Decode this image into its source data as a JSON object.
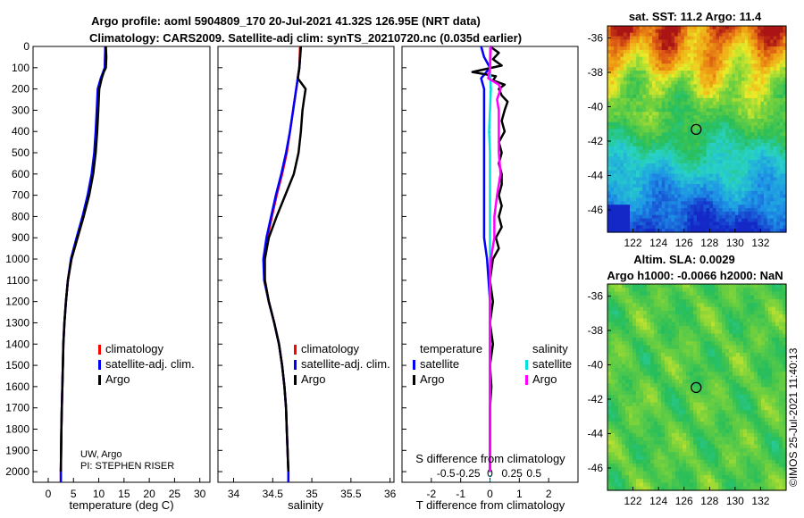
{
  "header": {
    "title_line1": "Argo profile: aoml 5904809_170 20-Jul-2021 41.32S 126.95E (NRT data)",
    "title_line2": "Climatology: CARS2009. Satellite-adj clim: synTS_20210720.nc (0.035d earlier)"
  },
  "colors": {
    "climatology": "#ff0000",
    "satellite_adj": "#0000ff",
    "argo": "#000000",
    "t_diff_satellite": "#0000ff",
    "s_diff_satellite": "#00e0e0",
    "s_diff_argo": "#ff00ff"
  },
  "chart_data": [
    {
      "type": "line",
      "name": "temperature_profile",
      "xlabel": "temperature (deg C)",
      "ylabel": "",
      "xlim": [
        -3,
        32
      ],
      "ylim": [
        2050,
        0
      ],
      "xticks": [
        "0",
        "5",
        "10",
        "15",
        "20",
        "25",
        "30"
      ],
      "xtick_values": [
        0,
        5,
        10,
        15,
        20,
        25,
        30
      ],
      "yticks": [
        "0",
        "100",
        "200",
        "300",
        "400",
        "500",
        "600",
        "700",
        "800",
        "900",
        "1000",
        "1100",
        "1200",
        "1300",
        "1400",
        "1500",
        "1600",
        "1700",
        "1800",
        "1900",
        "2000"
      ],
      "ytick_values": [
        0,
        100,
        200,
        300,
        400,
        500,
        600,
        700,
        800,
        900,
        1000,
        1100,
        1200,
        1300,
        1400,
        1500,
        1600,
        1700,
        1800,
        1900,
        2000
      ],
      "legend": [
        "climatology",
        "satellite-adj. clim.",
        "Argo"
      ],
      "annotation_1": "UW, Argo",
      "annotation_2": "PI: STEPHEN RISER",
      "series": [
        {
          "name": "climatology",
          "depth": [
            0,
            100,
            150,
            200,
            300,
            400,
            500,
            600,
            700,
            800,
            900,
            1000,
            1100,
            1200,
            1300,
            1400,
            1500,
            1600,
            1700,
            1800,
            1900,
            2000,
            2050
          ],
          "values": [
            11.3,
            11.2,
            10.5,
            10.0,
            9.8,
            9.6,
            9.3,
            8.8,
            8.0,
            7.0,
            5.8,
            4.6,
            3.9,
            3.5,
            3.2,
            3.0,
            2.9,
            2.8,
            2.7,
            2.6,
            2.55,
            2.5,
            2.5
          ]
        },
        {
          "name": "satellite-adj. clim.",
          "depth": [
            0,
            100,
            150,
            200,
            300,
            400,
            500,
            600,
            700,
            800,
            900,
            1000,
            1100,
            1200,
            1300,
            1400,
            1500,
            1600,
            1700,
            1800,
            1900,
            2000,
            2050
          ],
          "values": [
            11.3,
            11.2,
            10.4,
            9.8,
            9.6,
            9.4,
            9.1,
            8.6,
            7.8,
            6.8,
            5.6,
            4.5,
            3.9,
            3.5,
            3.2,
            3.0,
            2.9,
            2.8,
            2.7,
            2.6,
            2.55,
            2.5,
            2.5
          ]
        },
        {
          "name": "Argo",
          "depth": [
            0,
            50,
            100,
            120,
            150,
            200,
            300,
            400,
            500,
            600,
            700,
            800,
            900,
            1000,
            1100,
            1200,
            1300,
            1400,
            1500,
            1600,
            1700,
            1800,
            1900,
            2000
          ],
          "values": [
            11.4,
            11.5,
            11.4,
            11.0,
            10.6,
            10.1,
            9.9,
            9.7,
            9.4,
            8.9,
            8.1,
            7.0,
            5.8,
            4.6,
            3.9,
            3.5,
            3.2,
            3.0,
            2.9,
            2.8,
            2.7,
            2.6,
            2.55,
            2.5
          ]
        }
      ]
    },
    {
      "type": "line",
      "name": "salinity_profile",
      "xlabel": "salinity",
      "xlim": [
        33.8,
        36.05
      ],
      "ylim": [
        2050,
        0
      ],
      "xticks": [
        "34",
        "34.5",
        "35",
        "35.5",
        "36"
      ],
      "xtick_values": [
        34,
        34.5,
        35,
        35.5,
        36
      ],
      "legend": [
        "climatology",
        "satellite-adj. clim.",
        "Argo"
      ],
      "series": [
        {
          "name": "climatology",
          "depth": [
            0,
            100,
            200,
            300,
            400,
            500,
            600,
            700,
            800,
            900,
            1000,
            1100,
            1200,
            1300,
            1400,
            1500,
            1600,
            1700,
            1800,
            1900,
            2000,
            2050
          ],
          "values": [
            34.85,
            34.84,
            34.8,
            34.76,
            34.72,
            34.68,
            34.62,
            34.55,
            34.49,
            34.43,
            34.39,
            34.4,
            34.45,
            34.52,
            34.58,
            34.62,
            34.65,
            34.67,
            34.68,
            34.69,
            34.7,
            34.7
          ]
        },
        {
          "name": "satellite-adj. clim.",
          "depth": [
            0,
            100,
            200,
            300,
            400,
            500,
            600,
            700,
            800,
            900,
            1000,
            1100,
            1200,
            1300,
            1400,
            1500,
            1600,
            1700,
            1800,
            1900,
            2000,
            2050
          ],
          "values": [
            34.86,
            34.84,
            34.8,
            34.76,
            34.72,
            34.67,
            34.61,
            34.54,
            34.48,
            34.42,
            34.38,
            34.39,
            34.45,
            34.52,
            34.58,
            34.62,
            34.65,
            34.67,
            34.68,
            34.69,
            34.7,
            34.7
          ]
        },
        {
          "name": "Argo",
          "depth": [
            0,
            100,
            150,
            180,
            200,
            250,
            300,
            400,
            500,
            600,
            700,
            800,
            900,
            1000,
            1100,
            1200,
            1300,
            1400,
            1500,
            1600,
            1700,
            1800,
            1900,
            2000
          ],
          "values": [
            34.86,
            34.84,
            34.82,
            34.88,
            34.92,
            34.9,
            34.88,
            34.86,
            34.83,
            34.77,
            34.66,
            34.55,
            34.45,
            34.4,
            34.4,
            34.45,
            34.52,
            34.58,
            34.62,
            34.65,
            34.67,
            34.68,
            34.69,
            34.7
          ]
        }
      ]
    },
    {
      "type": "line",
      "name": "difference_from_climatology",
      "xlabel": "T difference from climatology",
      "xlabel_top": "S difference from climatology",
      "xlim": [
        -3,
        3
      ],
      "ylim": [
        2050,
        0
      ],
      "xticks": [
        "-2",
        "-1",
        "0",
        "1",
        "2"
      ],
      "xtick_values": [
        -2,
        -1,
        0,
        1,
        2
      ],
      "top_ticks": [
        "-0.5",
        "-0.25",
        "0",
        "0.25",
        "0.5"
      ],
      "legend_temperature_title": "temperature",
      "legend_salinity_title": "salinity",
      "legend_temperature": [
        "satellite",
        "Argo"
      ],
      "legend_salinity": [
        "satellite",
        "Argo"
      ],
      "series": [
        {
          "name": "T satellite",
          "depth": [
            0,
            50,
            100,
            150,
            200,
            300,
            400,
            500,
            600,
            700,
            800,
            900,
            1000,
            1100,
            1200,
            1300,
            1400,
            1500,
            1600,
            1700,
            1800,
            1900,
            2000
          ],
          "values": [
            -0.3,
            -0.2,
            0.0,
            -0.3,
            -0.2,
            -0.2,
            -0.2,
            -0.2,
            -0.2,
            -0.2,
            -0.2,
            -0.2,
            -0.1,
            -0.05,
            0,
            0,
            0,
            0,
            0,
            0,
            0,
            0,
            0
          ]
        },
        {
          "name": "T Argo",
          "depth": [
            0,
            30,
            60,
            90,
            120,
            140,
            160,
            180,
            200,
            230,
            260,
            300,
            350,
            400,
            450,
            500,
            550,
            600,
            650,
            700,
            750,
            800,
            850,
            900,
            950,
            1000,
            1100,
            1200,
            1300,
            1400,
            1500,
            1600,
            1700,
            1800,
            1900,
            2000
          ],
          "values": [
            0.0,
            0.3,
            0.1,
            0.4,
            -0.6,
            0.2,
            0.1,
            0.5,
            0.3,
            0.4,
            0.6,
            0.5,
            0.4,
            0.5,
            0.3,
            0.4,
            0.3,
            0.4,
            0.4,
            0.3,
            0.4,
            0.3,
            0.4,
            0.2,
            0.3,
            0.1,
            0.0,
            0.1,
            0.0,
            0.1,
            0.0,
            0.05,
            0.0,
            0.0,
            0.0,
            0.0
          ]
        },
        {
          "name": "S satellite",
          "depth": [
            0,
            100,
            200,
            300,
            400,
            500,
            600,
            700,
            800,
            900,
            1000,
            1100,
            1200,
            1300,
            1400,
            1500,
            1600,
            1700,
            1800,
            1900,
            2000
          ],
          "values": [
            0.0,
            0.0,
            0.01,
            0.0,
            -0.01,
            0.0,
            0.0,
            0.0,
            0.0,
            0.0,
            0.0,
            0.0,
            0.0,
            0.0,
            0.0,
            0.0,
            0.0,
            0.0,
            0.0,
            0.0,
            0.0
          ]
        },
        {
          "name": "S Argo",
          "depth": [
            0,
            100,
            150,
            180,
            200,
            250,
            300,
            400,
            500,
            600,
            700,
            800,
            900,
            1000,
            1100,
            1200,
            1300,
            1400,
            1500,
            1600,
            1700,
            1800,
            1900,
            2000
          ],
          "values": [
            0.01,
            0.0,
            -0.02,
            0.1,
            0.12,
            0.08,
            0.1,
            0.1,
            0.1,
            0.12,
            0.08,
            0.05,
            0.05,
            0.01,
            0.0,
            0.0,
            0.0,
            0.0,
            0.0,
            0.0,
            0.0,
            0.0,
            0.0,
            0.0
          ]
        }
      ]
    },
    {
      "type": "heatmap",
      "name": "satellite_sst_map",
      "title": "sat. SST: 11.2 Argo: 11.4",
      "xticks": [
        "122",
        "124",
        "126",
        "128",
        "130",
        "132"
      ],
      "xtick_values": [
        122,
        124,
        126,
        128,
        130,
        132
      ],
      "yticks": [
        "-36",
        "-38",
        "-40",
        "-42",
        "-44",
        "-46"
      ],
      "ytick_values": [
        -36,
        -38,
        -40,
        -42,
        -44,
        -46
      ],
      "xlim": [
        120.0,
        134.0
      ],
      "ylim": [
        -47.3,
        -35.3
      ],
      "marker_lon": 126.95,
      "marker_lat": -41.32
    },
    {
      "type": "heatmap",
      "name": "altimetry_sla_map",
      "title_line1": "Altim. SLA: 0.0029",
      "title_line2": "Argo h1000: -0.0066 h2000: NaN",
      "xticks": [
        "122",
        "124",
        "126",
        "128",
        "130",
        "132"
      ],
      "xtick_values": [
        122,
        124,
        126,
        128,
        130,
        132
      ],
      "yticks": [
        "-36",
        "-38",
        "-40",
        "-42",
        "-44",
        "-46"
      ],
      "ytick_values": [
        -36,
        -38,
        -40,
        -42,
        -44,
        -46
      ],
      "xlim": [
        120.0,
        134.0
      ],
      "ylim": [
        -47.3,
        -35.3
      ],
      "marker_lon": 126.95,
      "marker_lat": -41.32
    }
  ],
  "credit": "©IMOS 25-Jul-2021 11:40:13"
}
